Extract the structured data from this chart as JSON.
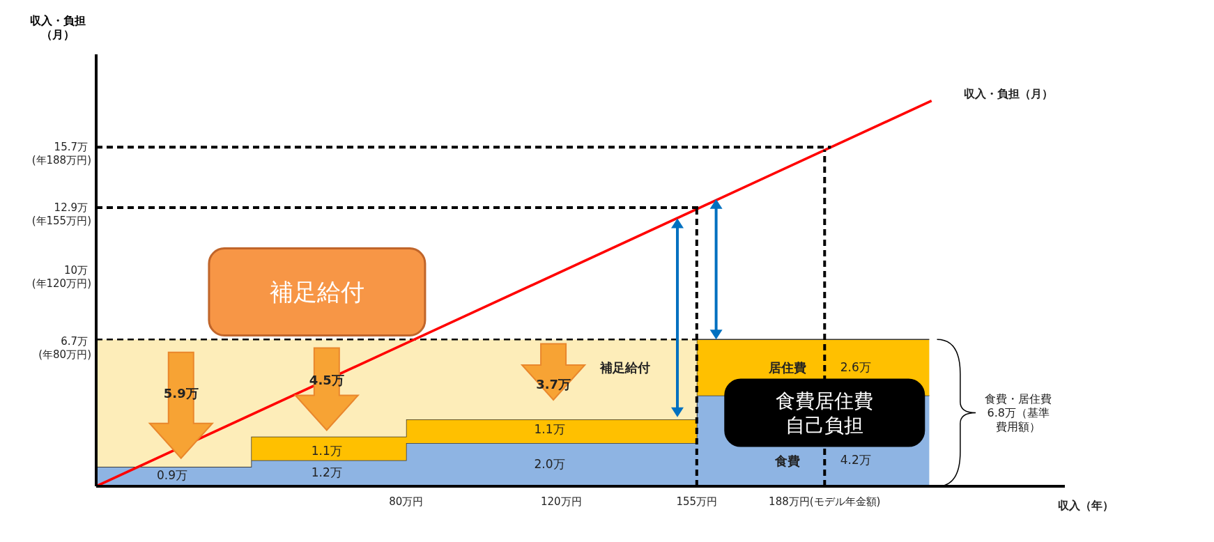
{
  "chart_data": {
    "type": "area",
    "stacked": true,
    "xlabel": "収入（年）",
    "ylabel": "収入・負担（月）",
    "x": [
      0,
      40,
      40,
      80,
      80,
      155,
      155,
      215
    ],
    "series": [
      {
        "color": "#8eb4e3",
        "values": [
          0.9,
          0.9,
          1.2,
          1.2,
          2.0,
          2.0,
          4.2,
          4.2
        ]
      },
      {
        "color": "#ffc000",
        "values": [
          0,
          0,
          1.1,
          1.1,
          1.1,
          1.1,
          2.6,
          2.6
        ]
      },
      {
        "color": "#fdedb9",
        "line_style": "dashed",
        "values": [
          5.9,
          5.9,
          4.5,
          4.5,
          3.7,
          3.7,
          null,
          null
        ]
      },
      {
        "type": "line",
        "name": "収入・負担（月）",
        "color": "#ff0000",
        "x": [
          0,
          215.6
        ],
        "values": [
          0,
          17.85
        ]
      }
    ],
    "xlim": [
      0,
      250
    ],
    "ylim": [
      0,
      20
    ],
    "xticks": [
      {
        "value": 80,
        "label": "80万円"
      },
      {
        "value": 120,
        "label": "120万円"
      },
      {
        "value": 155,
        "label": "155万円"
      },
      {
        "value": 188,
        "label": "188万円(モデル年金額)"
      }
    ],
    "yticks": [
      {
        "value": 6.7,
        "label": "6.7万"
      },
      {
        "value": 10,
        "label": "10万"
      },
      {
        "value": 12.9,
        "label": "12.9万"
      },
      {
        "value": 15.7,
        "label": "15.7万"
      }
    ],
    "ref_lines": [
      {
        "axis": "y",
        "value": 15.7
      },
      {
        "axis": "y",
        "value": 12.9
      },
      {
        "axis": "x",
        "value": 155
      },
      {
        "axis": "x",
        "value": 188
      }
    ],
    "annotations": [
      "補足給付",
      "食費居住費自己負担",
      "食費・居住費6.8万（基準費用額）",
      "5.9万",
      "4.5万",
      "3.7万",
      "補足給付",
      "居住費",
      "2.6万",
      "食費",
      "4.2万",
      "0.9万",
      "1.2万",
      "1.1万",
      "2.0万",
      "1.1万",
      "(年80万円)",
      "(年120万円)",
      "(年155万円)",
      "(年188万円)"
    ],
    "marker": "none"
  }
}
